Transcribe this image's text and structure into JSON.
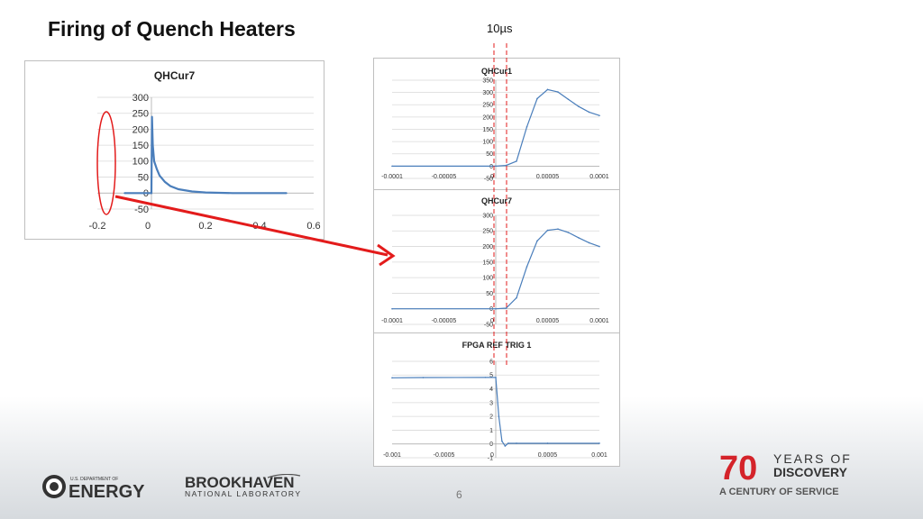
{
  "slide": {
    "title": "Firing of Quench Heaters",
    "time_marker_label": "10µs",
    "page_number": "6",
    "accent_color": "#e31b1b",
    "series_color": "#4a7ebb"
  },
  "logos": {
    "doe_small": "U.S. DEPARTMENT OF",
    "doe_big": "ENERGY",
    "bnl_big": "BROOKHAVEN",
    "bnl_small": "NATIONAL LABORATORY",
    "seventy_num": "70",
    "seventy_line1": "YEARS OF",
    "seventy_line2": "DISCOVERY",
    "seventy_line3": "A CENTURY OF SERVICE"
  },
  "chart_data": [
    {
      "id": "overview",
      "type": "line",
      "title": "QHCur7",
      "xlim": [
        -0.2,
        0.6
      ],
      "ylim": [
        -50,
        300
      ],
      "xticks": [
        "-0.2",
        "0",
        "0.2",
        "0.4",
        "0.6"
      ],
      "yticks": [
        "-50",
        "0",
        "50",
        "100",
        "150",
        "200",
        "250",
        "300"
      ],
      "x": [
        -0.1,
        -0.01,
        0.0,
        0.002,
        0.005,
        0.01,
        0.02,
        0.03,
        0.05,
        0.07,
        0.1,
        0.15,
        0.2,
        0.3,
        0.4,
        0.5
      ],
      "values": [
        0,
        0,
        0,
        240,
        150,
        100,
        75,
        55,
        35,
        22,
        12,
        5,
        2,
        0,
        0,
        0
      ]
    },
    {
      "id": "zoom-qhcur1",
      "type": "line",
      "title": "QHCur1",
      "xlim": [
        -0.0001,
        0.0001
      ],
      "ylim": [
        -50,
        350
      ],
      "xticks": [
        "-0.0001",
        "-0.00005",
        "0",
        "0.00005",
        "0.0001"
      ],
      "yticks": [
        "-50",
        "0",
        "50",
        "100",
        "150",
        "200",
        "250",
        "300",
        "350"
      ],
      "x": [
        -0.0001,
        0.0,
        1e-05,
        2e-05,
        3e-05,
        4e-05,
        5e-05,
        6e-05,
        7e-05,
        8e-05,
        9e-05,
        0.0001
      ],
      "values": [
        0,
        0,
        3,
        20,
        160,
        275,
        312,
        302,
        272,
        243,
        220,
        206
      ]
    },
    {
      "id": "zoom-qhcur7",
      "type": "line",
      "title": "QHCur7",
      "xlim": [
        -0.0001,
        0.0001
      ],
      "ylim": [
        -50,
        300
      ],
      "xticks": [
        "-0.0001",
        "-0.00005",
        "0",
        "0.00005",
        "0.0001"
      ],
      "yticks": [
        "-50",
        "0",
        "50",
        "100",
        "150",
        "200",
        "250",
        "300"
      ],
      "x": [
        -0.0001,
        0.0,
        1e-05,
        2e-05,
        3e-05,
        4e-05,
        5e-05,
        6e-05,
        7e-05,
        8e-05,
        9e-05,
        0.0001
      ],
      "values": [
        0,
        0,
        2,
        35,
        135,
        218,
        252,
        256,
        245,
        228,
        212,
        200
      ]
    },
    {
      "id": "fpga-trigger",
      "type": "line",
      "title": "FPGA REF TRIG 1",
      "xlim": [
        -0.001,
        0.001
      ],
      "ylim": [
        -1,
        6
      ],
      "xticks": [
        "-0.001",
        "-0.0005",
        "0",
        "0.0005",
        "0.001"
      ],
      "yticks": [
        "-1",
        "0",
        "1",
        "2",
        "3",
        "4",
        "5",
        "6"
      ],
      "x": [
        -0.001,
        -0.0007,
        -0.0001,
        0.0,
        3e-05,
        6e-05,
        9e-05,
        0.00012,
        0.0002,
        0.0005,
        0.001
      ],
      "values": [
        4.8,
        4.82,
        4.83,
        4.83,
        2.0,
        0.2,
        -0.15,
        0.05,
        0.05,
        0.05,
        0.05
      ]
    }
  ]
}
